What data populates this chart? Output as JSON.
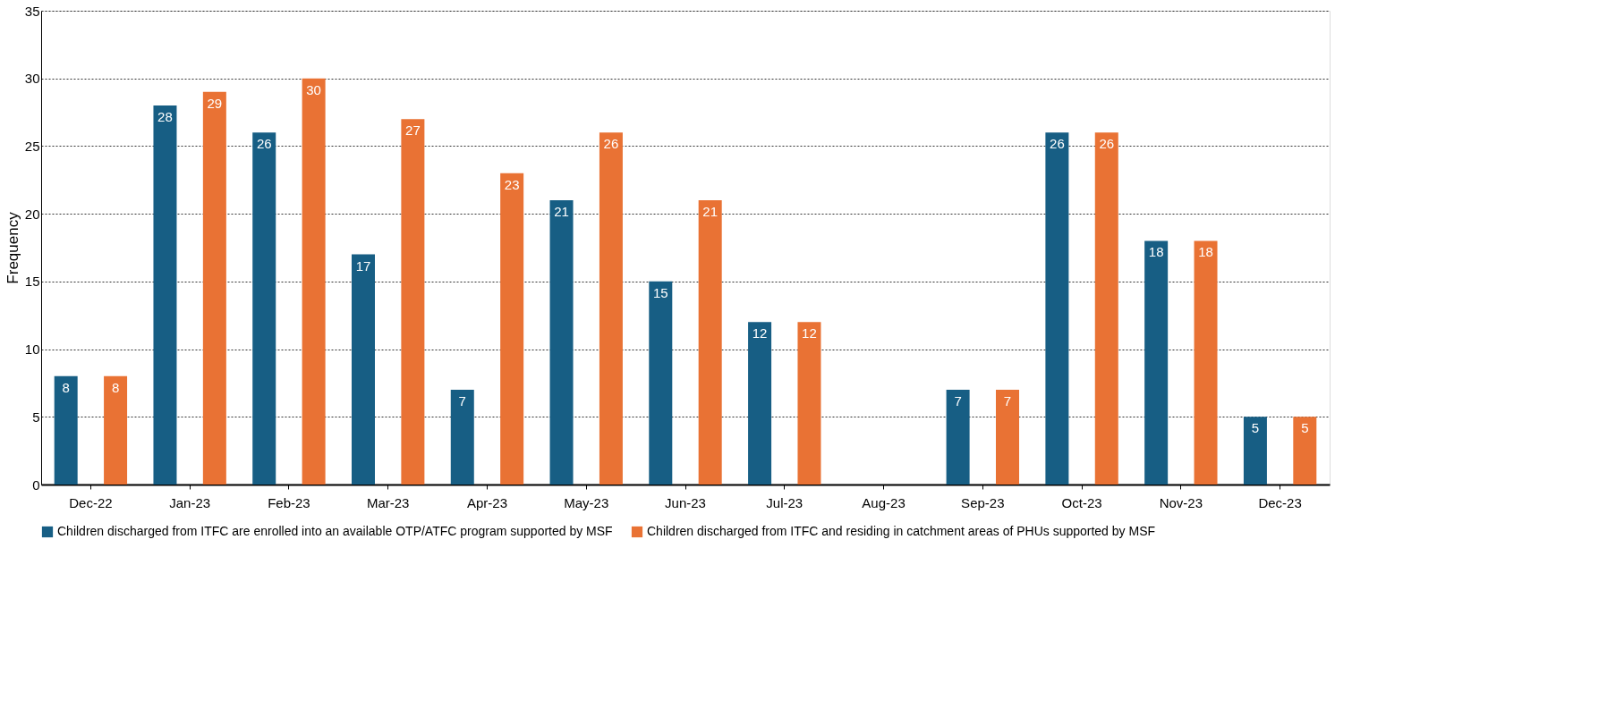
{
  "chart_data": {
    "type": "bar",
    "ylabel": "Frequency",
    "categories": [
      "Dec-22",
      "Jan-23",
      "Feb-23",
      "Mar-23",
      "Apr-23",
      "May-23",
      "Jun-23",
      "Jul-23",
      "Aug-23",
      "Sep-23",
      "Oct-23",
      "Nov-23",
      "Dec-23"
    ],
    "series": [
      {
        "name": "Children discharged from ITFC are enrolled into an available OTP/ATFC program supported by MSF",
        "color": "#175e84",
        "values": [
          8,
          28,
          26,
          17,
          7,
          21,
          15,
          12,
          null,
          7,
          26,
          18,
          5
        ]
      },
      {
        "name": "Children discharged from ITFC and residing in catchment areas of PHUs supported by MSF",
        "color": "#e97234",
        "values": [
          8,
          29,
          30,
          27,
          23,
          26,
          21,
          12,
          null,
          7,
          26,
          18,
          5
        ]
      }
    ],
    "ylim": [
      0,
      35
    ],
    "yticks": [
      0,
      5,
      10,
      15,
      20,
      25,
      30,
      35
    ],
    "grid": "y",
    "legend": "bottom",
    "data_labels": true
  }
}
